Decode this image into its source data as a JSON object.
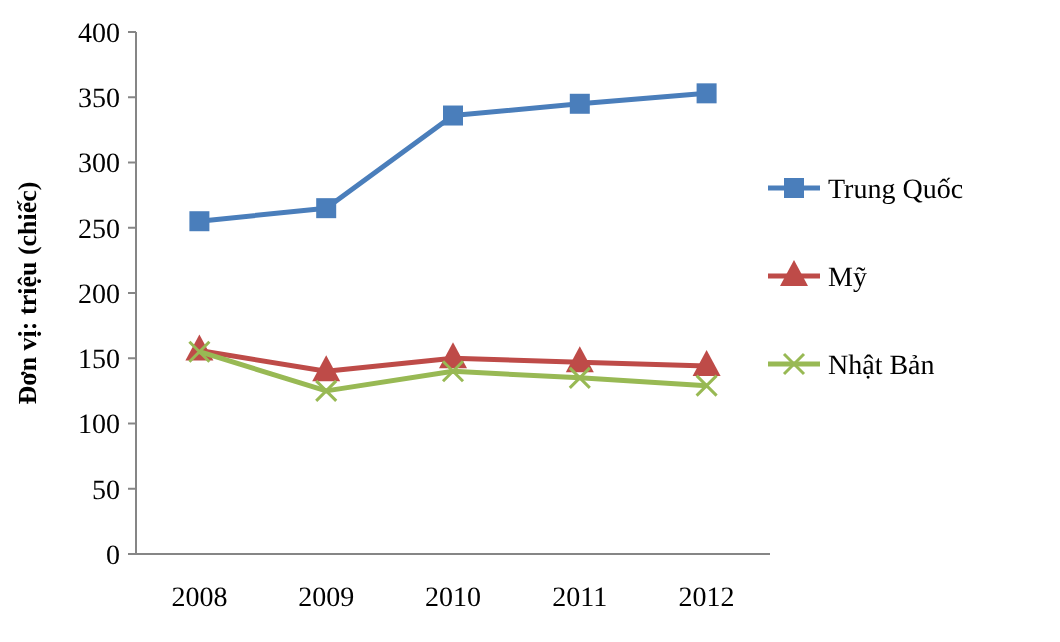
{
  "chart_data": {
    "type": "line",
    "ylabel": "Đơn vị: triệu (chiếc)",
    "categories": [
      "2008",
      "2009",
      "2010",
      "2011",
      "2012"
    ],
    "ylim": [
      0,
      400
    ],
    "yticks": [
      0,
      50,
      100,
      150,
      200,
      250,
      300,
      350,
      400
    ],
    "grid": false,
    "legend": "right",
    "series": [
      {
        "name": "Trung Quốc",
        "color": "#4a7ebb",
        "marker": "square",
        "values": [
          255,
          265,
          336,
          345,
          353
        ]
      },
      {
        "name": "Mỹ",
        "color": "#be4b48",
        "marker": "triangle",
        "values": [
          156,
          140,
          150,
          147,
          144
        ]
      },
      {
        "name": "Nhật Bản",
        "color": "#98b954",
        "marker": "cross",
        "values": [
          155,
          125,
          140,
          135,
          129
        ]
      }
    ]
  }
}
